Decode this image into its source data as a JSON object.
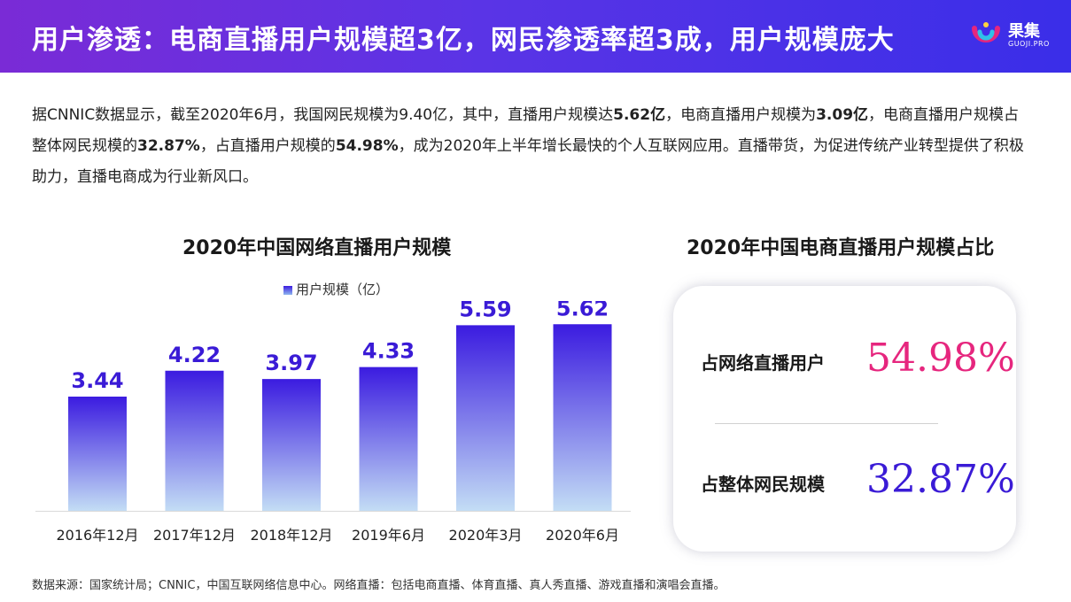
{
  "header": {
    "title": "用户渗透：电商直播用户规模超3亿，网民渗透率超3成，用户规模庞大",
    "logo_cn": "果集",
    "logo_en": "GUOJI.PRO"
  },
  "intro": {
    "segments": [
      {
        "text": "据CNNIC数据显示，截至2020年6月，我国网民规模为9.40亿，其中，直播用户规模达",
        "bold": false
      },
      {
        "text": "5.62亿",
        "bold": true
      },
      {
        "text": "，电商直播用户规模为",
        "bold": false
      },
      {
        "text": "3.09亿",
        "bold": true
      },
      {
        "text": "，电商直播用户规模占整体网民规模的",
        "bold": false
      },
      {
        "text": "32.87%",
        "bold": true
      },
      {
        "text": "，占直播用户规模的",
        "bold": false
      },
      {
        "text": "54.98%",
        "bold": true
      },
      {
        "text": "，成为2020年上半年增长最快的个人互联网应用。直播带货，为促进传统产业转型提供了积极助力，直播电商成为行业新风口。",
        "bold": false
      }
    ]
  },
  "chart_data": [
    {
      "type": "bar",
      "title": "2020年中国网络直播用户规模",
      "categories": [
        "2016年12月",
        "2017年12月",
        "2018年12月",
        "2019年6月",
        "2020年3月",
        "2020年6月"
      ],
      "series": [
        {
          "name": "用户规模（亿）",
          "values": [
            3.44,
            4.22,
            3.97,
            4.33,
            5.59,
            5.62
          ]
        }
      ],
      "ylim": [
        0,
        6.4
      ],
      "grid": false,
      "legend_position": "top",
      "colors": {
        "bar_top": "#3b1be0",
        "bar_bottom": "#c3ddf5",
        "label": "#3a1bd6"
      }
    },
    {
      "type": "table",
      "title": "2020年中国电商直播用户规模占比",
      "rows": [
        {
          "label": "占网络直播用户",
          "value": "54.98%",
          "number": 54.98,
          "color": "#e6267e"
        },
        {
          "label": "占整体网民规模",
          "value": "32.87%",
          "number": 32.87,
          "color": "#3a1bd6"
        }
      ]
    }
  ],
  "source": "数据来源：国家统计局；CNNIC，中国互联网络信息中心。网络直播：包括电商直播、体育直播、真人秀直播、游戏直播和演唱会直播。"
}
